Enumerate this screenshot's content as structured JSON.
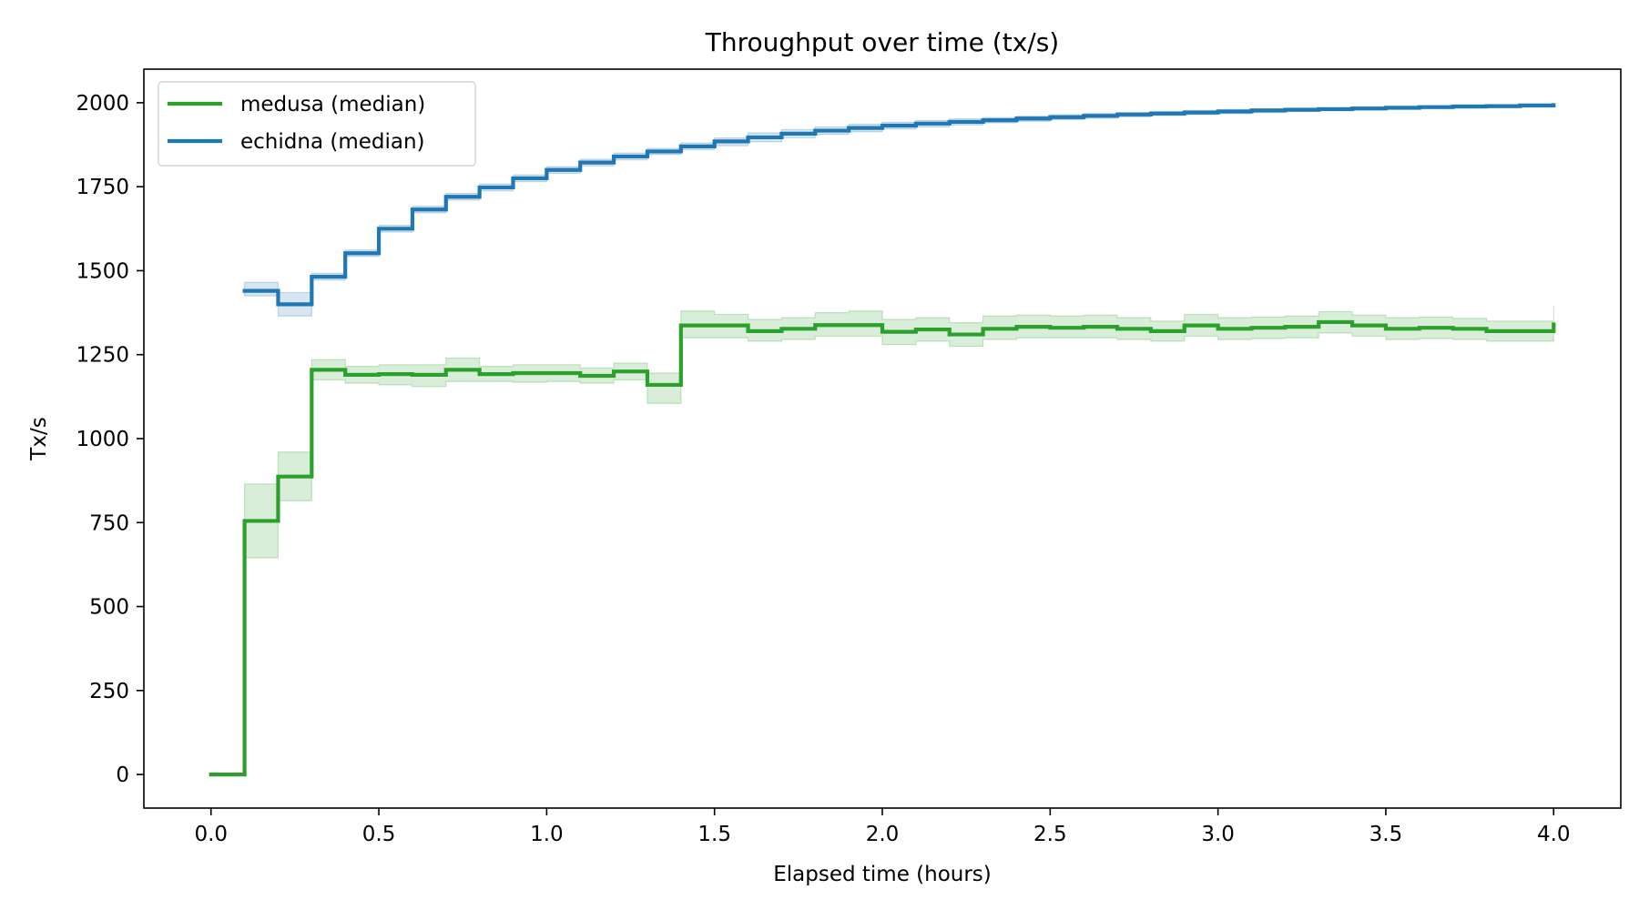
{
  "chart_data": {
    "type": "line",
    "title": "Throughput over time (tx/s)",
    "xlabel": "Elapsed time (hours)",
    "ylabel": "Tx/s",
    "xlim": [
      -0.2,
      4.2
    ],
    "ylim": [
      -100,
      2100
    ],
    "xticks": [
      0.0,
      0.5,
      1.0,
      1.5,
      2.0,
      2.5,
      3.0,
      3.5,
      4.0
    ],
    "xtick_labels": [
      "0.0",
      "0.5",
      "1.0",
      "1.5",
      "2.0",
      "2.5",
      "3.0",
      "3.5",
      "4.0"
    ],
    "yticks": [
      0,
      250,
      500,
      750,
      1000,
      1250,
      1500,
      1750,
      2000
    ],
    "ytick_labels": [
      "0",
      "250",
      "500",
      "750",
      "1000",
      "1250",
      "1500",
      "1750",
      "2000"
    ],
    "grid": false,
    "legend_position": "top-left",
    "step": "post",
    "series": [
      {
        "name": "medusa (median)",
        "color": "#2ca02c",
        "x": [
          0.0,
          0.1,
          0.2,
          0.3,
          0.4,
          0.5,
          0.6,
          0.7,
          0.8,
          0.9,
          1.0,
          1.1,
          1.2,
          1.3,
          1.4,
          1.5,
          1.6,
          1.7,
          1.8,
          1.9,
          2.0,
          2.1,
          2.2,
          2.3,
          2.4,
          2.5,
          2.6,
          2.7,
          2.8,
          2.9,
          3.0,
          3.1,
          3.2,
          3.3,
          3.4,
          3.5,
          3.6,
          3.7,
          3.8,
          3.9,
          4.0
        ],
        "y": [
          0,
          755,
          887,
          1205,
          1190,
          1192,
          1190,
          1205,
          1192,
          1195,
          1195,
          1187,
          1200,
          1160,
          1337,
          1337,
          1320,
          1327,
          1338,
          1338,
          1318,
          1325,
          1310,
          1327,
          1333,
          1330,
          1333,
          1327,
          1320,
          1337,
          1327,
          1330,
          1333,
          1347,
          1337,
          1327,
          1330,
          1327,
          1320,
          1320,
          1340
        ],
        "band_low": [
          0,
          645,
          815,
          1175,
          1165,
          1160,
          1155,
          1170,
          1170,
          1168,
          1170,
          1165,
          1175,
          1105,
          1300,
          1300,
          1290,
          1295,
          1305,
          1305,
          1280,
          1290,
          1275,
          1295,
          1300,
          1300,
          1300,
          1295,
          1290,
          1305,
          1295,
          1298,
          1300,
          1315,
          1305,
          1295,
          1298,
          1295,
          1290,
          1290,
          1300
        ],
        "band_high": [
          0,
          865,
          960,
          1235,
          1215,
          1220,
          1220,
          1240,
          1215,
          1220,
          1220,
          1210,
          1225,
          1195,
          1380,
          1370,
          1355,
          1360,
          1375,
          1380,
          1355,
          1360,
          1345,
          1365,
          1368,
          1365,
          1368,
          1360,
          1350,
          1370,
          1360,
          1362,
          1365,
          1378,
          1368,
          1360,
          1362,
          1358,
          1350,
          1350,
          1395
        ]
      },
      {
        "name": "echidna (median)",
        "color": "#1f77b4",
        "x": [
          0.1,
          0.2,
          0.3,
          0.4,
          0.5,
          0.6,
          0.7,
          0.8,
          0.9,
          1.0,
          1.1,
          1.2,
          1.3,
          1.4,
          1.5,
          1.6,
          1.7,
          1.8,
          1.9,
          2.0,
          2.1,
          2.2,
          2.3,
          2.4,
          2.5,
          2.6,
          2.7,
          2.8,
          2.9,
          3.0,
          3.1,
          3.2,
          3.3,
          3.4,
          3.5,
          3.6,
          3.7,
          3.8,
          3.9,
          4.0
        ],
        "y": [
          1440,
          1400,
          1482,
          1552,
          1625,
          1682,
          1720,
          1748,
          1775,
          1800,
          1822,
          1840,
          1855,
          1870,
          1885,
          1897,
          1908,
          1917,
          1925,
          1932,
          1938,
          1943,
          1948,
          1953,
          1957,
          1961,
          1965,
          1968,
          1971,
          1974,
          1977,
          1979,
          1981,
          1983,
          1985,
          1987,
          1989,
          1990,
          1992,
          1993
        ],
        "band_low": [
          1425,
          1365,
          1472,
          1542,
          1615,
          1672,
          1710,
          1738,
          1765,
          1790,
          1812,
          1830,
          1846,
          1860,
          1872,
          1884,
          1896,
          1906,
          1914,
          1922,
          1928,
          1934,
          1940,
          1945,
          1950,
          1954,
          1958,
          1962,
          1965,
          1968,
          1971,
          1974,
          1976,
          1978,
          1980,
          1982,
          1984,
          1985,
          1987,
          1988
        ],
        "band_high": [
          1465,
          1435,
          1492,
          1562,
          1635,
          1692,
          1730,
          1758,
          1785,
          1810,
          1832,
          1850,
          1864,
          1880,
          1895,
          1910,
          1920,
          1928,
          1936,
          1942,
          1947,
          1952,
          1956,
          1960,
          1964,
          1968,
          1971,
          1974,
          1977,
          1980,
          1982,
          1984,
          1986,
          1988,
          1990,
          1991,
          1993,
          1994,
          1996,
          1997
        ]
      }
    ]
  }
}
